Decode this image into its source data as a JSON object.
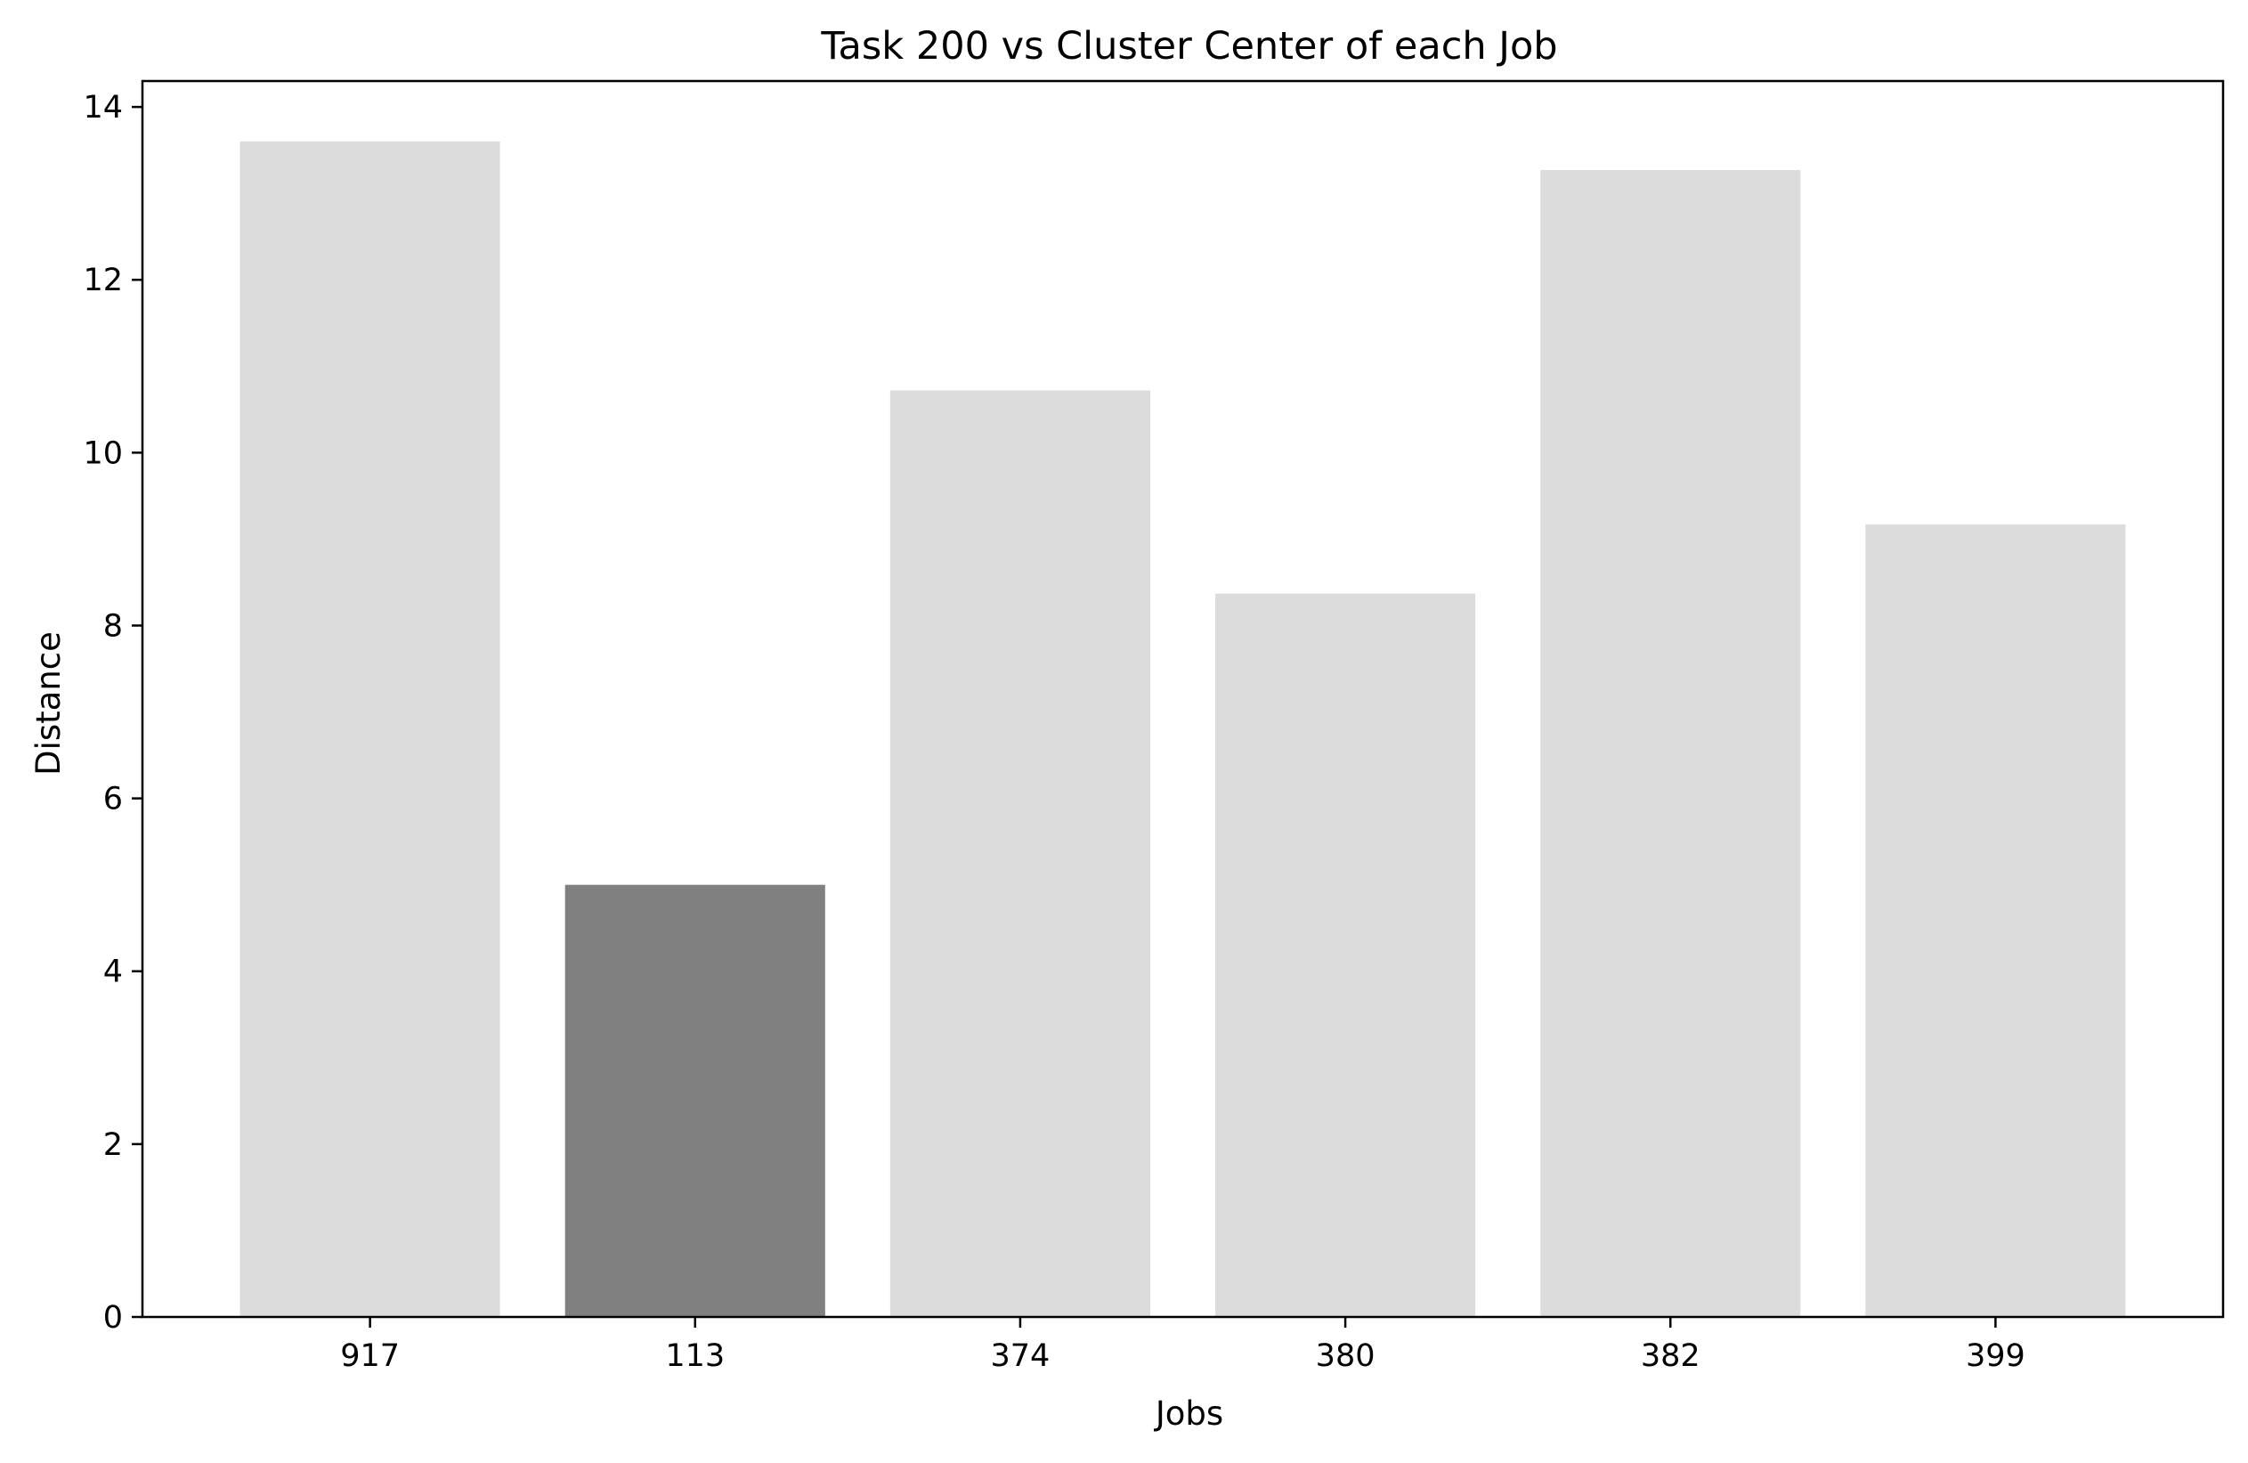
{
  "chart_data": {
    "type": "bar",
    "title": "Task 200 vs Cluster Center of each Job",
    "xlabel": "Jobs",
    "ylabel": "Distance",
    "categories": [
      "917",
      "113",
      "374",
      "380",
      "382",
      "399"
    ],
    "values": [
      13.6,
      5.0,
      10.72,
      8.37,
      13.27,
      9.17
    ],
    "highlight": "113",
    "colors": {
      "default_bar": "#dcdcdc",
      "highlight_bar": "#808080"
    },
    "ylim": [
      0,
      14.3
    ],
    "yticks": [
      0,
      2,
      4,
      6,
      8,
      10,
      12,
      14
    ],
    "grid": false,
    "legend": "none"
  }
}
